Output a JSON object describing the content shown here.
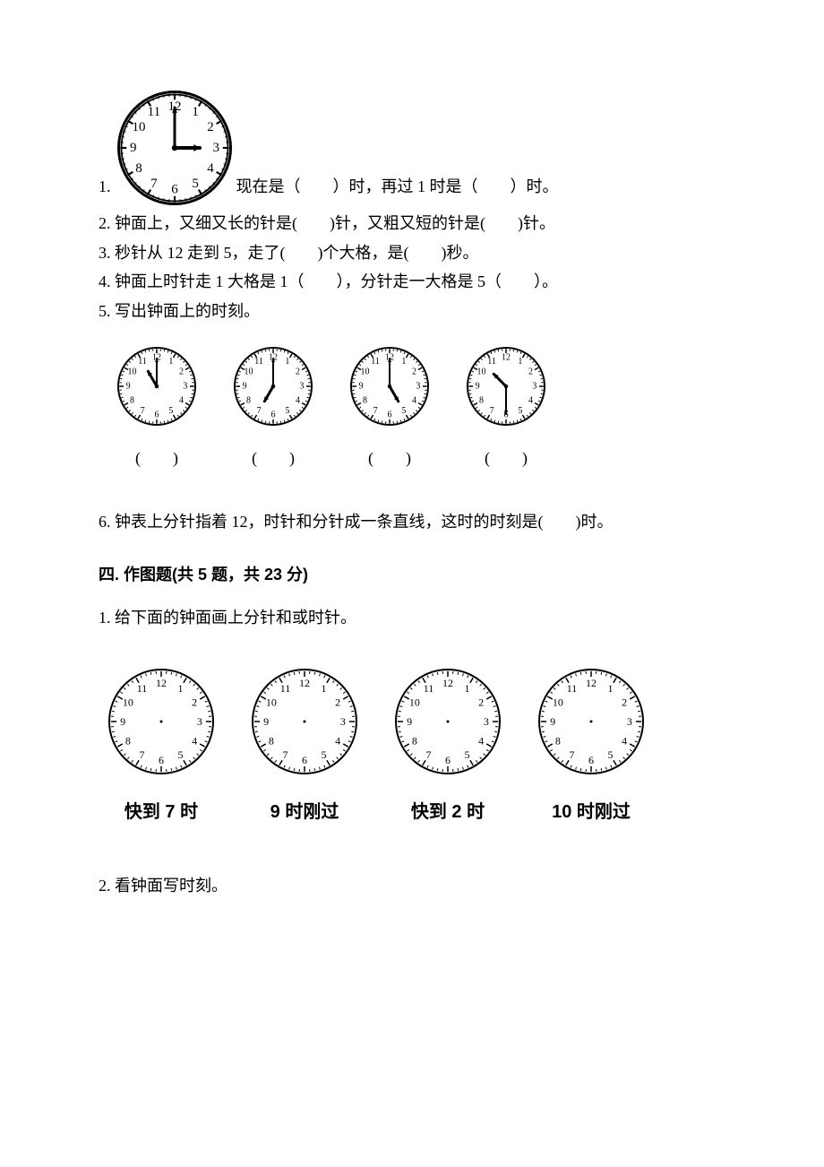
{
  "colors": {
    "ink": "#000000",
    "bg": "#ffffff"
  },
  "q1": {
    "number": "1.",
    "clock": {
      "size": 130,
      "hour_hand_hour": 3,
      "minute_hand_min": 0,
      "outline_width": 3,
      "numeral_fontsize": 15,
      "tick_count": 60,
      "bold_outer_ring": true
    },
    "text_after": "现在是（　　）时，再过 1 时是（　　）时。"
  },
  "q2": {
    "text": "2. 钟面上，又细又长的针是(　　)针，又粗又短的针是(　　)针。"
  },
  "q3": {
    "text": "3. 秒针从 12 走到 5，走了(　　)个大格，是(　　)秒。"
  },
  "q4": {
    "text": "4. 钟面上时针走 1 大格是 1（　　），分针走一大格是 5（　　）。"
  },
  "q5": {
    "text": "5. 写出钟面上的时刻。",
    "clocks": [
      {
        "size": 90,
        "hour_hand_hour": 11,
        "minute_hand_min": 0,
        "outline_width": 2,
        "numeral_fontsize": 10,
        "tick_count": 60,
        "bold_outer_ring": false
      },
      {
        "size": 90,
        "hour_hand_hour": 7,
        "minute_hand_min": 0,
        "outline_width": 2,
        "numeral_fontsize": 10,
        "tick_count": 60,
        "bold_outer_ring": false
      },
      {
        "size": 90,
        "hour_hand_hour": 5,
        "minute_hand_min": 0,
        "outline_width": 2,
        "numeral_fontsize": 10,
        "tick_count": 60,
        "bold_outer_ring": false
      },
      {
        "size": 90,
        "hour_hand_hour": 10.5,
        "minute_hand_min": 30,
        "outline_width": 2,
        "numeral_fontsize": 10,
        "tick_count": 60,
        "bold_outer_ring": false
      }
    ],
    "blank_label": "(　　)"
  },
  "q6": {
    "text": "6. 钟表上分针指着 12，时针和分针成一条直线，这时的时刻是(　　)时。"
  },
  "section4": {
    "title": "四. 作图题(共 5 题，共 23 分)"
  },
  "s4q1": {
    "text": "1. 给下面的钟面画上分针和或时针。",
    "clocks": [
      {
        "size": 120,
        "no_hands": true,
        "outline_width": 2,
        "numeral_fontsize": 12,
        "tick_count": 60,
        "bold_outer_ring": false,
        "label": "快到 7 时"
      },
      {
        "size": 120,
        "no_hands": true,
        "outline_width": 2,
        "numeral_fontsize": 12,
        "tick_count": 60,
        "bold_outer_ring": false,
        "label": "9 时刚过"
      },
      {
        "size": 120,
        "no_hands": true,
        "outline_width": 2,
        "numeral_fontsize": 12,
        "tick_count": 60,
        "bold_outer_ring": false,
        "label": "快到 2 时"
      },
      {
        "size": 120,
        "no_hands": true,
        "outline_width": 2,
        "numeral_fontsize": 12,
        "tick_count": 60,
        "bold_outer_ring": false,
        "label": "10 时刚过"
      }
    ]
  },
  "s4q2": {
    "text": "2. 看钟面写时刻。"
  }
}
